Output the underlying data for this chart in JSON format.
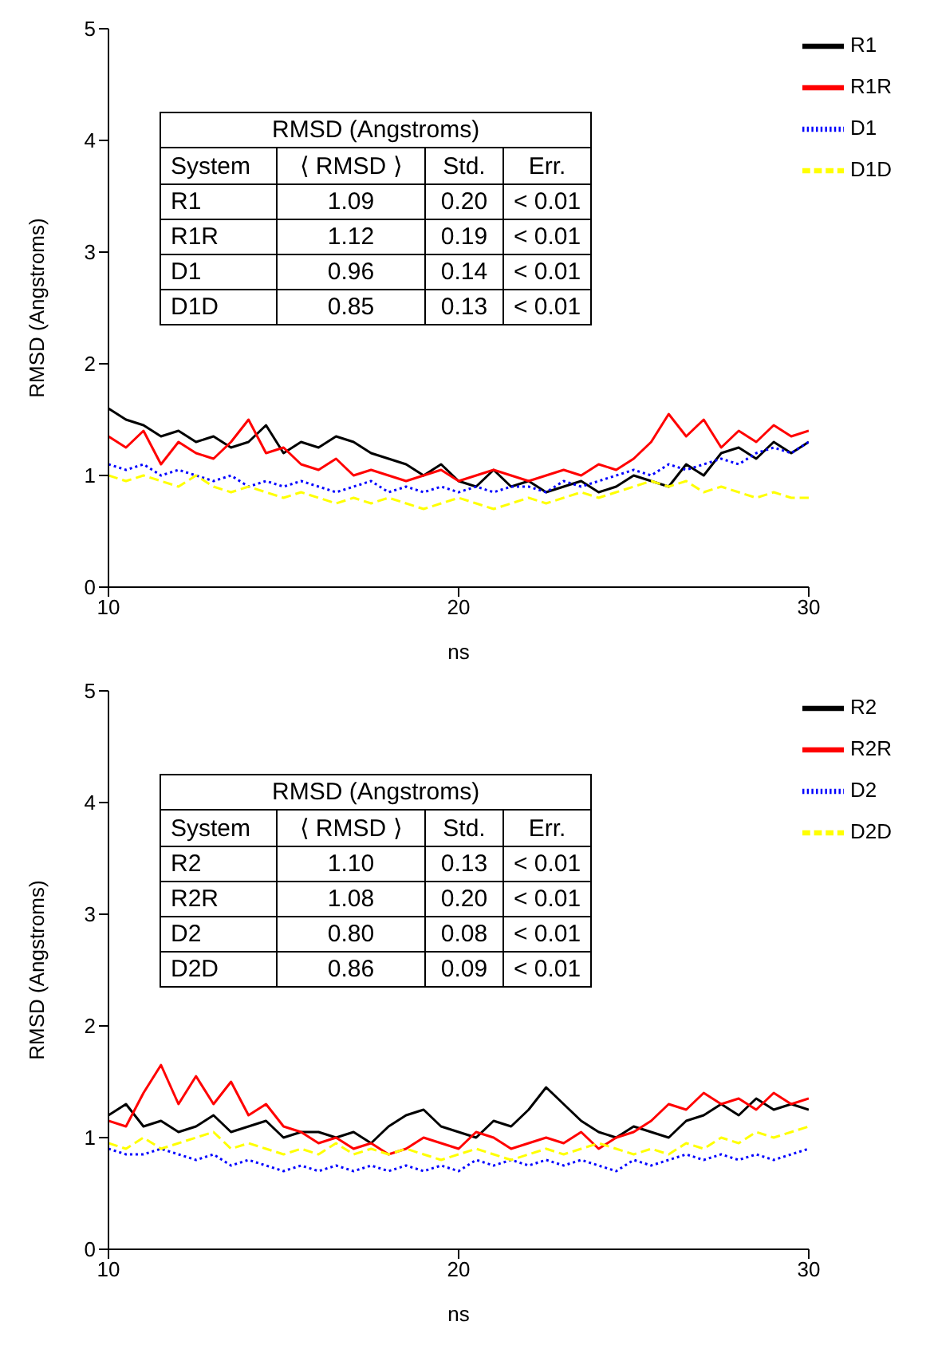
{
  "chart_data": [
    {
      "type": "line",
      "xlabel": "ns",
      "ylabel": "RMSD (Angstroms)",
      "xlim": [
        10,
        30
      ],
      "xticks": [
        10,
        20,
        30
      ],
      "ylim": [
        0,
        5
      ],
      "yticks": [
        0,
        1,
        2,
        3,
        4,
        5
      ],
      "legend": "top right",
      "marker": "none",
      "x": [
        10,
        10.5,
        11,
        11.5,
        12,
        12.5,
        13,
        13.5,
        14,
        14.5,
        15,
        15.5,
        16,
        16.5,
        17,
        17.5,
        18,
        18.5,
        19,
        19.5,
        20,
        20.5,
        21,
        21.5,
        22,
        22.5,
        23,
        23.5,
        24,
        24.5,
        25,
        25.5,
        26,
        26.5,
        27,
        27.5,
        28,
        28.5,
        29,
        29.5,
        30
      ],
      "annotations": [
        "RMSD (Angstroms)",
        "System",
        "⟨ RMSD ⟩",
        "Std.",
        "Err.",
        "R1",
        "1.09",
        "0.20",
        "< 0.01",
        "R1R",
        "1.12",
        "0.19",
        "< 0.01",
        "D1",
        "0.96",
        "0.14",
        "< 0.01",
        "D1D",
        "0.85",
        "0.13",
        "< 0.01"
      ],
      "series": [
        {
          "name": "R1",
          "color": "#000000",
          "line_style": "solid",
          "values": [
            1.6,
            1.5,
            1.45,
            1.35,
            1.4,
            1.3,
            1.35,
            1.25,
            1.3,
            1.45,
            1.2,
            1.3,
            1.25,
            1.35,
            1.3,
            1.2,
            1.15,
            1.1,
            1.0,
            1.1,
            0.95,
            0.9,
            1.05,
            0.9,
            0.95,
            0.85,
            0.9,
            0.95,
            0.85,
            0.9,
            1.0,
            0.95,
            0.9,
            1.1,
            1.0,
            1.2,
            1.25,
            1.15,
            1.3,
            1.2,
            1.3
          ]
        },
        {
          "name": "R1R",
          "color": "#ff0000",
          "line_style": "solid",
          "values": [
            1.35,
            1.25,
            1.4,
            1.1,
            1.3,
            1.2,
            1.15,
            1.3,
            1.5,
            1.2,
            1.25,
            1.1,
            1.05,
            1.15,
            1.0,
            1.05,
            1.0,
            0.95,
            1.0,
            1.05,
            0.95,
            1.0,
            1.05,
            1.0,
            0.95,
            1.0,
            1.05,
            1.0,
            1.1,
            1.05,
            1.15,
            1.3,
            1.55,
            1.35,
            1.5,
            1.25,
            1.4,
            1.3,
            1.45,
            1.35,
            1.4
          ]
        },
        {
          "name": "D1",
          "color": "#0000ff",
          "line_style": "dotted",
          "values": [
            1.1,
            1.05,
            1.1,
            1.0,
            1.05,
            1.0,
            0.95,
            1.0,
            0.9,
            0.95,
            0.9,
            0.95,
            0.9,
            0.85,
            0.9,
            0.95,
            0.85,
            0.9,
            0.85,
            0.9,
            0.85,
            0.9,
            0.85,
            0.9,
            0.9,
            0.85,
            0.95,
            0.9,
            0.95,
            1.0,
            1.05,
            1.0,
            1.1,
            1.05,
            1.1,
            1.15,
            1.1,
            1.2,
            1.25,
            1.2,
            1.3
          ]
        },
        {
          "name": "D1D",
          "color": "#ffff00",
          "line_style": "dashed",
          "values": [
            1.0,
            0.95,
            1.0,
            0.95,
            0.9,
            1.0,
            0.9,
            0.85,
            0.9,
            0.85,
            0.8,
            0.85,
            0.8,
            0.75,
            0.8,
            0.75,
            0.8,
            0.75,
            0.7,
            0.75,
            0.8,
            0.75,
            0.7,
            0.75,
            0.8,
            0.75,
            0.8,
            0.85,
            0.8,
            0.85,
            0.9,
            0.95,
            0.9,
            0.95,
            0.85,
            0.9,
            0.85,
            0.8,
            0.85,
            0.8,
            0.8
          ]
        }
      ]
    },
    {
      "type": "line",
      "xlabel": "ns",
      "ylabel": "RMSD (Angstroms)",
      "xlim": [
        10,
        30
      ],
      "xticks": [
        10,
        20,
        30
      ],
      "ylim": [
        0,
        5
      ],
      "yticks": [
        0,
        1,
        2,
        3,
        4,
        5
      ],
      "legend": "top right",
      "marker": "none",
      "x": [
        10,
        10.5,
        11,
        11.5,
        12,
        12.5,
        13,
        13.5,
        14,
        14.5,
        15,
        15.5,
        16,
        16.5,
        17,
        17.5,
        18,
        18.5,
        19,
        19.5,
        20,
        20.5,
        21,
        21.5,
        22,
        22.5,
        23,
        23.5,
        24,
        24.5,
        25,
        25.5,
        26,
        26.5,
        27,
        27.5,
        28,
        28.5,
        29,
        29.5,
        30
      ],
      "annotations": [
        "RMSD (Angstroms)",
        "System",
        "⟨ RMSD ⟩",
        "Std.",
        "Err.",
        "R2",
        "1.10",
        "0.13",
        "< 0.01",
        "R2R",
        "1.08",
        "0.20",
        "< 0.01",
        "D2",
        "0.80",
        "0.08",
        "< 0.01",
        "D2D",
        "0.86",
        "0.09",
        "< 0.01"
      ],
      "series": [
        {
          "name": "R2",
          "color": "#000000",
          "line_style": "solid",
          "values": [
            1.2,
            1.3,
            1.1,
            1.15,
            1.05,
            1.1,
            1.2,
            1.05,
            1.1,
            1.15,
            1.0,
            1.05,
            1.05,
            1.0,
            1.05,
            0.95,
            1.1,
            1.2,
            1.25,
            1.1,
            1.05,
            1.0,
            1.15,
            1.1,
            1.25,
            1.45,
            1.3,
            1.15,
            1.05,
            1.0,
            1.1,
            1.05,
            1.0,
            1.15,
            1.2,
            1.3,
            1.2,
            1.35,
            1.25,
            1.3,
            1.25
          ]
        },
        {
          "name": "R2R",
          "color": "#ff0000",
          "line_style": "solid",
          "values": [
            1.15,
            1.1,
            1.4,
            1.65,
            1.3,
            1.55,
            1.3,
            1.5,
            1.2,
            1.3,
            1.1,
            1.05,
            0.95,
            1.0,
            0.9,
            0.95,
            0.85,
            0.9,
            1.0,
            0.95,
            0.9,
            1.05,
            1.0,
            0.9,
            0.95,
            1.0,
            0.95,
            1.05,
            0.9,
            1.0,
            1.05,
            1.15,
            1.3,
            1.25,
            1.4,
            1.3,
            1.35,
            1.25,
            1.4,
            1.3,
            1.35
          ]
        },
        {
          "name": "D2",
          "color": "#0000ff",
          "line_style": "dotted",
          "values": [
            0.9,
            0.85,
            0.85,
            0.9,
            0.85,
            0.8,
            0.85,
            0.75,
            0.8,
            0.75,
            0.7,
            0.75,
            0.7,
            0.75,
            0.7,
            0.75,
            0.7,
            0.75,
            0.7,
            0.75,
            0.7,
            0.8,
            0.75,
            0.8,
            0.75,
            0.8,
            0.75,
            0.8,
            0.75,
            0.7,
            0.8,
            0.75,
            0.8,
            0.85,
            0.8,
            0.85,
            0.8,
            0.85,
            0.8,
            0.85,
            0.9
          ]
        },
        {
          "name": "D2D",
          "color": "#ffff00",
          "line_style": "dashed",
          "values": [
            0.95,
            0.9,
            1.0,
            0.9,
            0.95,
            1.0,
            1.05,
            0.9,
            0.95,
            0.9,
            0.85,
            0.9,
            0.85,
            0.95,
            0.85,
            0.9,
            0.85,
            0.9,
            0.85,
            0.8,
            0.85,
            0.9,
            0.85,
            0.8,
            0.85,
            0.9,
            0.85,
            0.9,
            0.95,
            0.9,
            0.85,
            0.9,
            0.85,
            0.95,
            0.9,
            1.0,
            0.95,
            1.05,
            1.0,
            1.05,
            1.1
          ]
        }
      ]
    }
  ]
}
